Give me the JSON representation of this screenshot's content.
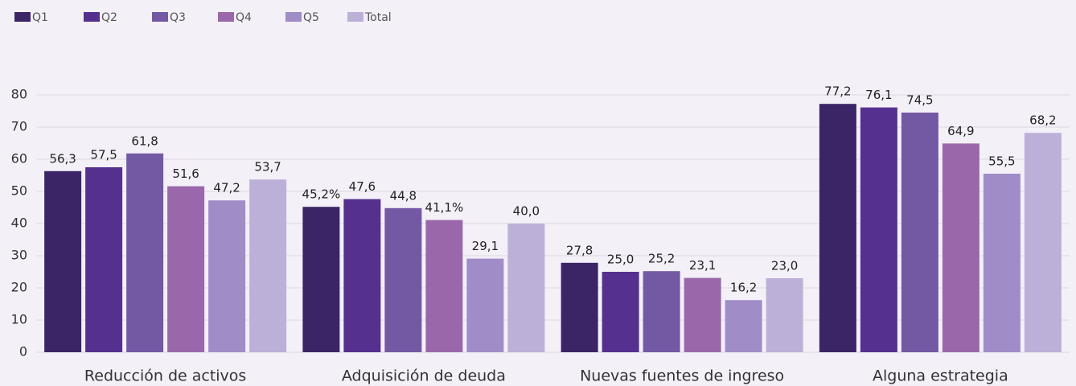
{
  "chart_data": {
    "type": "bar",
    "categories": [
      "Reducción de activos",
      "Adquisición de deuda",
      "Nuevas fuentes de ingreso",
      "Alguna estrategia"
    ],
    "series": [
      {
        "name": "Q1",
        "color": "#3b2566",
        "values": [
          56.3,
          45.2,
          27.8,
          77.2
        ],
        "value_labels": [
          "56,3",
          "45,2%",
          "27,8",
          "77,2"
        ]
      },
      {
        "name": "Q2",
        "color": "#56308f",
        "values": [
          57.5,
          47.6,
          25.0,
          76.1
        ],
        "value_labels": [
          "57,5",
          "47,6",
          "25,0",
          "76,1"
        ]
      },
      {
        "name": "Q3",
        "color": "#7358a3",
        "values": [
          61.8,
          44.8,
          25.2,
          74.5
        ],
        "value_labels": [
          "61,8",
          "44,8",
          "25,2",
          "74,5"
        ]
      },
      {
        "name": "Q4",
        "color": "#9a68aa",
        "values": [
          51.6,
          41.1,
          23.1,
          64.9
        ],
        "value_labels": [
          "51,6",
          "41,1%",
          "23,1",
          "64,9"
        ]
      },
      {
        "name": "Q5",
        "color": "#a08cc7",
        "values": [
          47.2,
          29.1,
          16.2,
          55.5
        ],
        "value_labels": [
          "47,2",
          "29,1",
          "16,2",
          "55,5"
        ]
      },
      {
        "name": "Total",
        "color": "#bcb0d8",
        "values": [
          53.7,
          40.0,
          23.0,
          68.2
        ],
        "value_labels": [
          "53,7",
          "40,0",
          "23,0",
          "68,2"
        ]
      }
    ],
    "ylim": [
      0,
      80
    ],
    "yticks": [
      0,
      10,
      20,
      30,
      40,
      50,
      60,
      70,
      80
    ],
    "grid": true,
    "legend": "top-left"
  }
}
